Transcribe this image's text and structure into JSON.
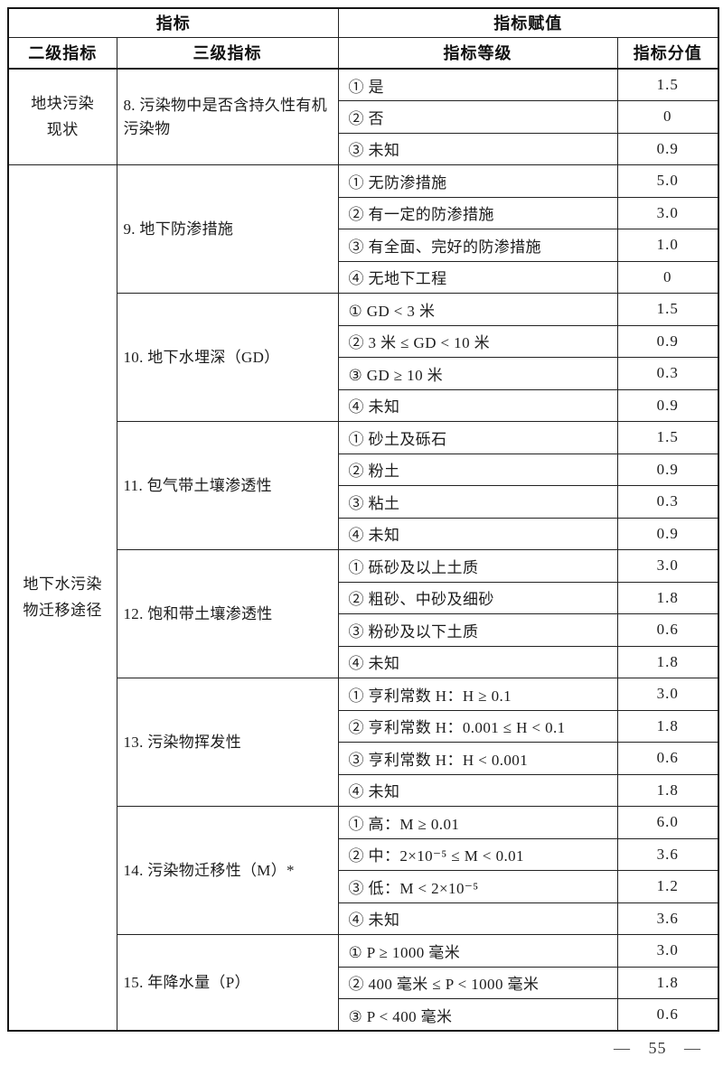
{
  "table": {
    "header": {
      "indicator": "指标",
      "assignment": "指标赋值",
      "level2": "二级指标",
      "level3": "三级指标",
      "grade": "指标等级",
      "score": "指标分值"
    },
    "groups": [
      {
        "level2": "地块污染\n现状",
        "indicators": [
          {
            "name": "8. 污染物中是否含持久性有机污染物",
            "options": [
              {
                "grade": "① 是",
                "score": "1.5"
              },
              {
                "grade": "② 否",
                "score": "0"
              },
              {
                "grade": "③ 未知",
                "score": "0.9"
              }
            ]
          }
        ]
      },
      {
        "level2": "地下水污染\n物迁移途径",
        "indicators": [
          {
            "name": "9. 地下防渗措施",
            "options": [
              {
                "grade": "① 无防渗措施",
                "score": "5.0"
              },
              {
                "grade": "② 有一定的防渗措施",
                "score": "3.0"
              },
              {
                "grade": "③ 有全面、完好的防渗措施",
                "score": "1.0"
              },
              {
                "grade": "④ 无地下工程",
                "score": "0"
              }
            ]
          },
          {
            "name": "10. 地下水埋深（GD）",
            "options": [
              {
                "grade": "① GD < 3 米",
                "score": "1.5"
              },
              {
                "grade": "② 3 米 ≤ GD < 10 米",
                "score": "0.9"
              },
              {
                "grade": "③ GD ≥ 10 米",
                "score": "0.3"
              },
              {
                "grade": "④ 未知",
                "score": "0.9"
              }
            ]
          },
          {
            "name": "11. 包气带土壤渗透性",
            "options": [
              {
                "grade": "① 砂土及砾石",
                "score": "1.5"
              },
              {
                "grade": "② 粉土",
                "score": "0.9"
              },
              {
                "grade": "③ 粘土",
                "score": "0.3"
              },
              {
                "grade": "④ 未知",
                "score": "0.9"
              }
            ]
          },
          {
            "name": "12. 饱和带土壤渗透性",
            "options": [
              {
                "grade": "① 砾砂及以上土质",
                "score": "3.0"
              },
              {
                "grade": "② 粗砂、中砂及细砂",
                "score": "1.8"
              },
              {
                "grade": "③ 粉砂及以下土质",
                "score": "0.6"
              },
              {
                "grade": "④ 未知",
                "score": "1.8"
              }
            ]
          },
          {
            "name": "13. 污染物挥发性",
            "options": [
              {
                "grade": "① 亨利常数 H：H ≥ 0.1",
                "score": "3.0"
              },
              {
                "grade": "② 亨利常数 H：0.001 ≤ H < 0.1",
                "score": "1.8"
              },
              {
                "grade": "③ 亨利常数 H：H < 0.001",
                "score": "0.6"
              },
              {
                "grade": "④ 未知",
                "score": "1.8"
              }
            ]
          },
          {
            "name": "14. 污染物迁移性（M）*",
            "options": [
              {
                "grade": "① 高：M ≥ 0.01",
                "score": "6.0"
              },
              {
                "grade": "② 中：2×10⁻⁵ ≤ M < 0.01",
                "score": "3.6"
              },
              {
                "grade": "③ 低：M < 2×10⁻⁵",
                "score": "1.2"
              },
              {
                "grade": "④ 未知",
                "score": "3.6"
              }
            ]
          },
          {
            "name": "15. 年降水量（P）",
            "options": [
              {
                "grade": "① P ≥ 1000 毫米",
                "score": "3.0"
              },
              {
                "grade": "② 400 毫米 ≤ P < 1000 毫米",
                "score": "1.8"
              },
              {
                "grade": "③ P < 400 毫米",
                "score": "0.6"
              }
            ]
          }
        ]
      }
    ]
  },
  "footer": {
    "page_number": "— 55 —"
  }
}
